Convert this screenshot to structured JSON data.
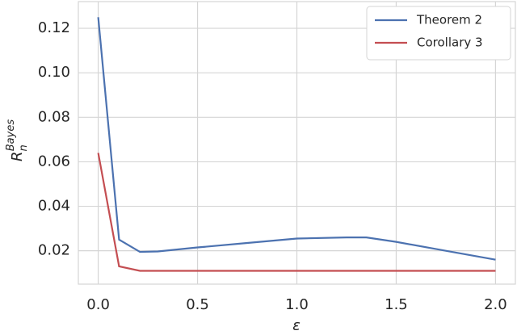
{
  "chart_data": {
    "type": "line",
    "xlabel": "ε",
    "ylabel": {
      "base": "R",
      "sub": "n",
      "sup": "Bayes"
    },
    "x": [
      0,
      0.105,
      0.21,
      0.3,
      0.5,
      0.75,
      1.0,
      1.25,
      1.35,
      1.5,
      1.75,
      2.0
    ],
    "series": [
      {
        "name": "Theorem 2",
        "color": "#4c72b0",
        "values": [
          0.125,
          0.025,
          0.0195,
          0.0197,
          0.0215,
          0.0235,
          0.0255,
          0.026,
          0.026,
          0.024,
          0.02,
          0.016
        ]
      },
      {
        "name": "Corollary 3",
        "color": "#c44e52",
        "values": [
          0.064,
          0.013,
          0.011,
          0.011,
          0.011,
          0.011,
          0.011,
          0.011,
          0.011,
          0.011,
          0.011,
          0.011
        ]
      }
    ],
    "xlim": [
      -0.1,
      2.1
    ],
    "ylim": [
      0.005,
      0.132
    ],
    "xticks": [
      {
        "value": 0,
        "label": "0.0"
      },
      0.5,
      {
        "value": 1,
        "label": "1.0"
      },
      1.5,
      {
        "value": 2,
        "label": "2.0"
      }
    ],
    "yticks": [
      0.02,
      0.04,
      0.06,
      0.08,
      {
        "value": 0.1,
        "label": "0.10"
      },
      0.12
    ],
    "grid": true,
    "legend": "upper right"
  }
}
